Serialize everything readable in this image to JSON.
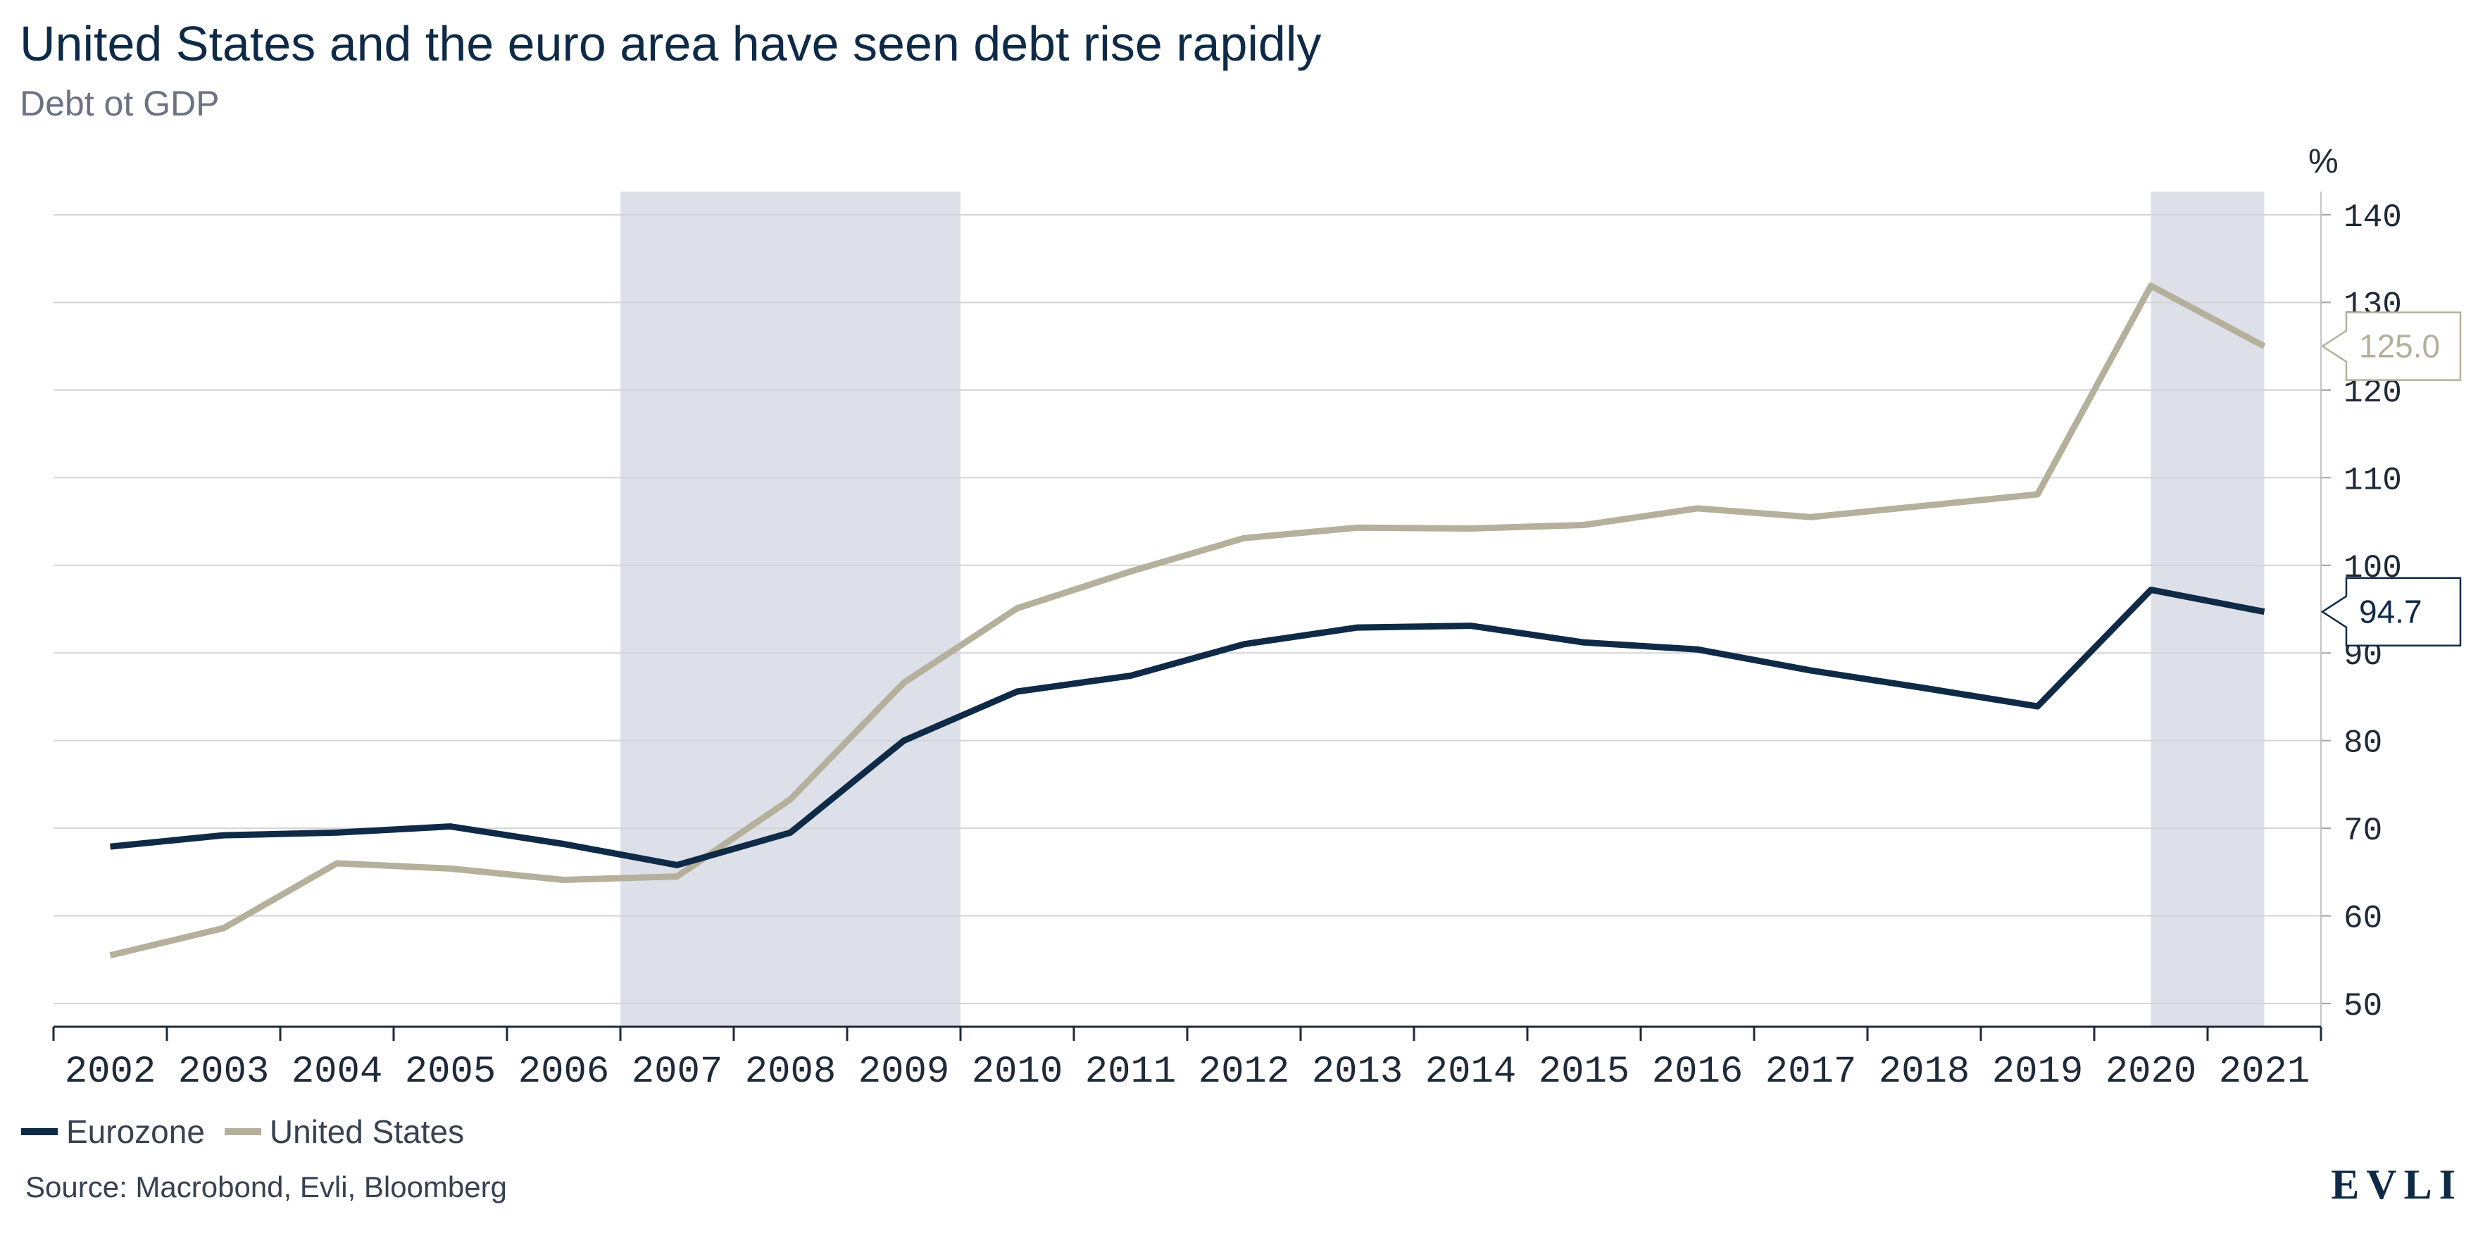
{
  "header": {
    "title": "United States and the euro area have seen debt rise rapidly",
    "subtitle": "Debt ot GDP"
  },
  "chart_data": {
    "type": "line",
    "title": "United States and the euro area have seen debt rise rapidly",
    "subtitle": "Debt ot GDP",
    "y_unit": "%",
    "categories": [
      "2002",
      "2003",
      "2004",
      "2005",
      "2006",
      "2007",
      "2008",
      "2009",
      "2010",
      "2011",
      "2012",
      "2013",
      "2014",
      "2015",
      "2016",
      "2017",
      "2018",
      "2019",
      "2020",
      "2021"
    ],
    "ylim": [
      50,
      140
    ],
    "yticks": [
      50,
      60,
      70,
      80,
      90,
      100,
      110,
      120,
      130,
      140
    ],
    "grid": true,
    "shaded_periods": [
      {
        "from": 2007,
        "to": 2010
      },
      {
        "from": 2020.5,
        "to": 2021.5
      }
    ],
    "series": [
      {
        "name": "Eurozone",
        "color": "#0e2a47",
        "values": [
          67.9,
          69.2,
          69.5,
          70.2,
          68.2,
          65.8,
          69.5,
          80.0,
          85.6,
          87.4,
          91.0,
          92.9,
          93.1,
          91.2,
          90.4,
          88.0,
          86.0,
          83.9,
          97.2,
          94.7
        ],
        "last_label": "94.7"
      },
      {
        "name": "United States",
        "color": "#b5b09b",
        "values": [
          55.5,
          58.6,
          66.0,
          65.4,
          64.1,
          64.5,
          73.3,
          86.6,
          95.1,
          99.3,
          103.1,
          104.3,
          104.2,
          104.6,
          106.5,
          105.5,
          106.8,
          108.1,
          131.9,
          125.0
        ],
        "last_label": "125.0"
      }
    ],
    "legend": [
      "Eurozone",
      "United States"
    ],
    "legend_position": "bottom-left"
  },
  "footer": {
    "source": "Source: Macrobond, Evli, Bloomberg",
    "logo": "EVLI"
  }
}
